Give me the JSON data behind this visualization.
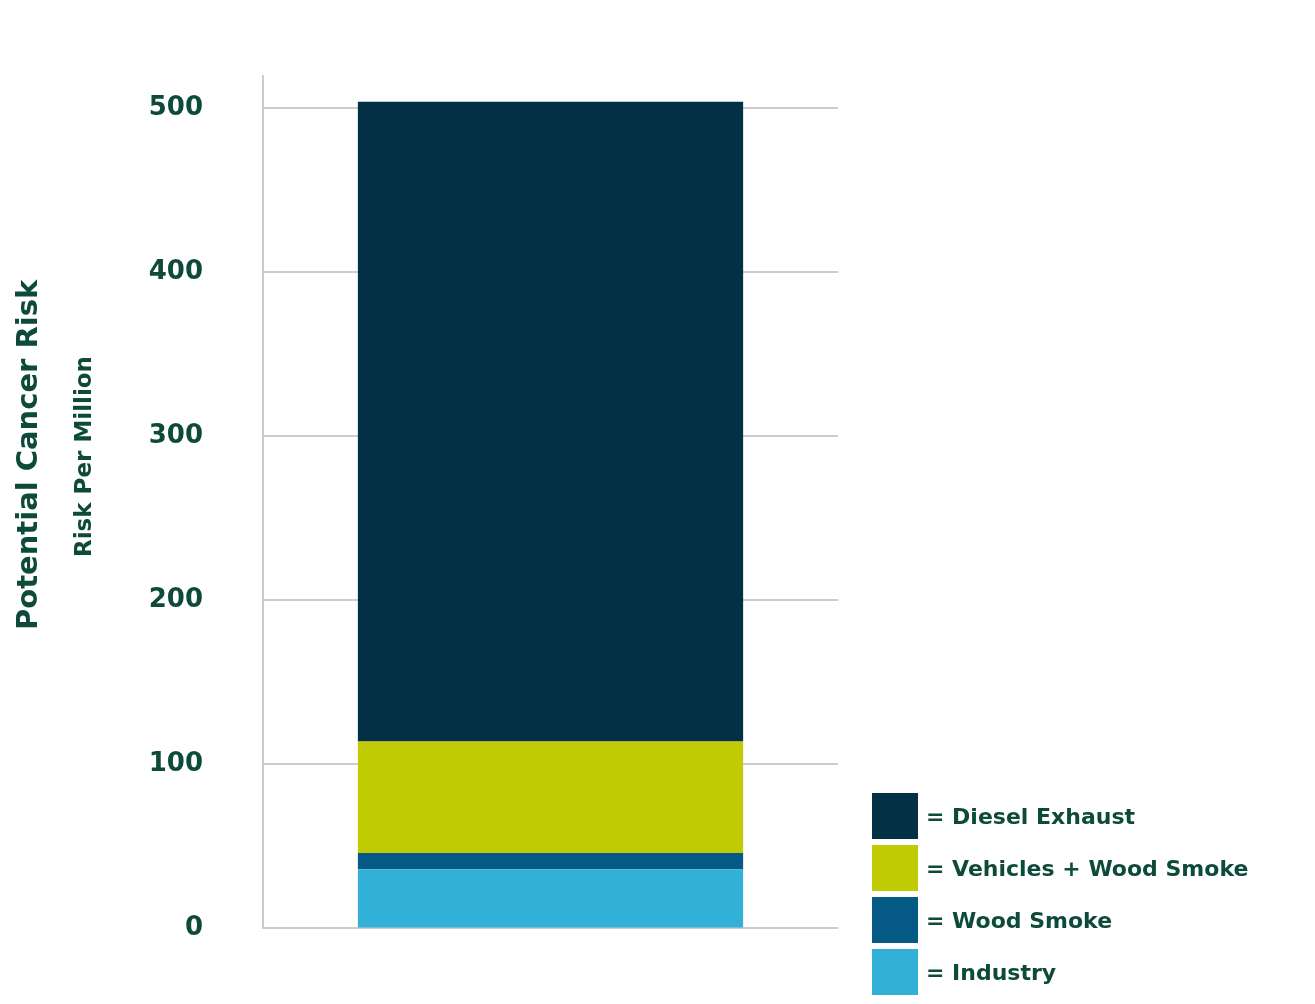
{
  "chart_data": {
    "type": "bar",
    "ylabel": "Potential Cancer Risk",
    "annotations": [
      "Risk Per Million"
    ],
    "categories": [
      null
    ],
    "stacked": true,
    "series": [
      {
        "name": "= Industry",
        "color": "#33b0d8",
        "values": [
          36
        ]
      },
      {
        "name": "= Wood Smoke",
        "color": "#045a85",
        "values": [
          10
        ]
      },
      {
        "name": "= Vehicles + Wood Smoke",
        "color": "#c0cb04",
        "values": [
          68
        ]
      },
      {
        "name": "= Diesel Exhaust",
        "color": "#033044",
        "values": [
          390
        ]
      }
    ],
    "ylim": [
      0,
      520
    ],
    "yticks": [
      0,
      100,
      200,
      300,
      400,
      500
    ],
    "grid": "y",
    "legend": "bottom right"
  }
}
